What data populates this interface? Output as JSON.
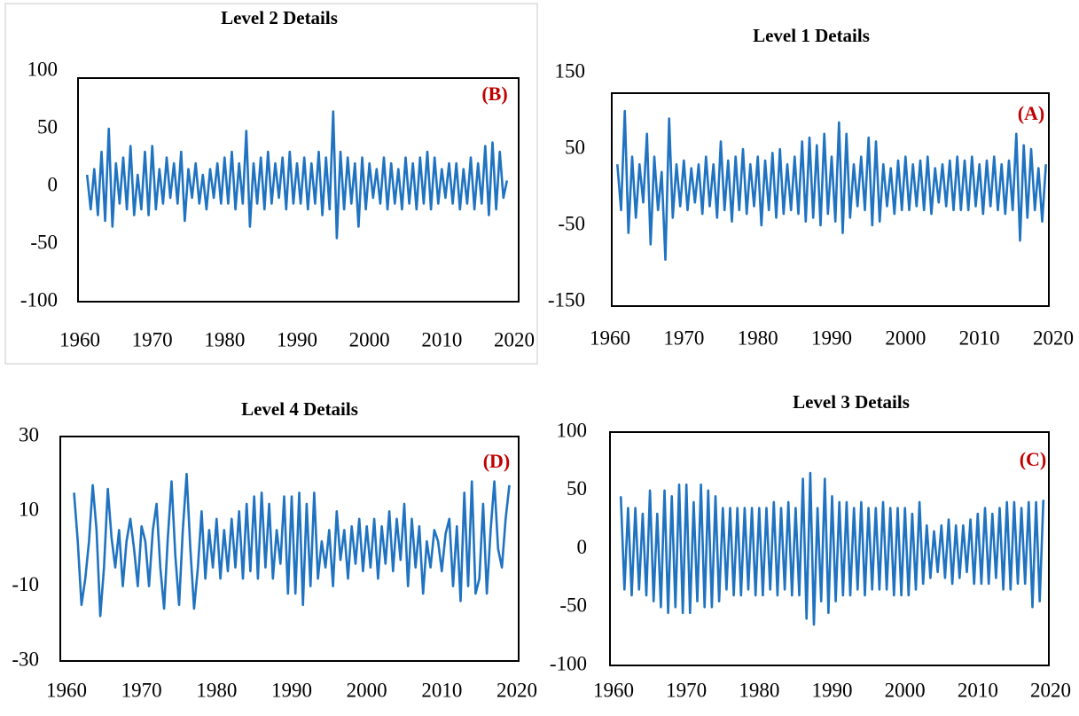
{
  "chart_data": [
    {
      "type": "line",
      "title": "Level 2 Details",
      "annotation": "(B)",
      "x": [
        1961,
        1961.5,
        1962,
        1962.5,
        1963,
        1963.5,
        1964,
        1964.5,
        1965,
        1965.5,
        1966,
        1966.5,
        1967,
        1967.5,
        1968,
        1968.5,
        1969,
        1969.5,
        1970,
        1970.5,
        1971,
        1971.5,
        1972,
        1972.5,
        1973,
        1973.5,
        1974,
        1974.5,
        1975,
        1975.5,
        1976,
        1976.5,
        1977,
        1977.5,
        1978,
        1978.5,
        1979,
        1979.5,
        1980,
        1980.5,
        1981,
        1981.5,
        1982,
        1982.5,
        1983,
        1983.5,
        1984,
        1984.5,
        1985,
        1985.5,
        1986,
        1986.5,
        1987,
        1987.5,
        1988,
        1988.5,
        1989,
        1989.5,
        1990,
        1990.5,
        1991,
        1991.5,
        1992,
        1992.5,
        1993,
        1993.5,
        1994,
        1994.5,
        1995,
        1995.5,
        1996,
        1996.5,
        1997,
        1997.5,
        1998,
        1998.5,
        1999,
        1999.5,
        2000,
        2000.5,
        2001,
        2001.5,
        2002,
        2002.5,
        2003,
        2003.5,
        2004,
        2004.5,
        2005,
        2005.5,
        2006,
        2006.5,
        2007,
        2007.5,
        2008,
        2008.5,
        2009,
        2009.5,
        2010,
        2010.5,
        2011,
        2011.5,
        2012,
        2012.5,
        2013,
        2013.5,
        2014,
        2014.5,
        2015,
        2015.5,
        2016,
        2016.5,
        2017,
        2017.5,
        2018,
        2018.5,
        2019
      ],
      "series": [
        {
          "color": "#1f73c1",
          "values": [
            10,
            -20,
            15,
            -25,
            30,
            -30,
            50,
            -35,
            20,
            -15,
            25,
            -20,
            35,
            -25,
            10,
            -20,
            30,
            -25,
            35,
            -20,
            15,
            -15,
            25,
            -10,
            20,
            -15,
            30,
            -30,
            15,
            -10,
            20,
            -15,
            10,
            -20,
            15,
            -10,
            20,
            -15,
            25,
            -15,
            30,
            -20,
            20,
            -15,
            48,
            -35,
            20,
            -15,
            25,
            -20,
            30,
            -15,
            20,
            -10,
            25,
            -20,
            30,
            -15,
            20,
            -15,
            25,
            -20,
            20,
            -15,
            30,
            -25,
            25,
            -20,
            65,
            -45,
            30,
            -20,
            25,
            -15,
            20,
            -35,
            25,
            -20,
            20,
            -10,
            15,
            -15,
            25,
            -20,
            20,
            -15,
            15,
            -20,
            25,
            -15,
            20,
            -20,
            25,
            -15,
            30,
            -20,
            25,
            -15,
            15,
            -10,
            20,
            -15,
            20,
            -20,
            15,
            -15,
            25,
            -20,
            20,
            -15,
            35,
            -25,
            38,
            -20,
            30,
            -10,
            5
          ]
        }
      ],
      "xlim": [
        1960,
        2020
      ],
      "xticks": [
        1960,
        1970,
        1980,
        1990,
        2000,
        2010,
        2020
      ],
      "ylim": [
        -100,
        100
      ],
      "yticks": [
        -100,
        -50,
        0,
        50,
        100
      ]
    },
    {
      "type": "line",
      "title": "Level 1 Details",
      "annotation": "(A)",
      "x": [
        1961,
        1961.5,
        1962,
        1962.5,
        1963,
        1963.5,
        1964,
        1964.5,
        1965,
        1965.5,
        1966,
        1966.5,
        1967,
        1967.5,
        1968,
        1968.5,
        1969,
        1969.5,
        1970,
        1970.5,
        1971,
        1971.5,
        1972,
        1972.5,
        1973,
        1973.5,
        1974,
        1974.5,
        1975,
        1975.5,
        1976,
        1976.5,
        1977,
        1977.5,
        1978,
        1978.5,
        1979,
        1979.5,
        1980,
        1980.5,
        1981,
        1981.5,
        1982,
        1982.5,
        1983,
        1983.5,
        1984,
        1984.5,
        1985,
        1985.5,
        1986,
        1986.5,
        1987,
        1987.5,
        1988,
        1988.5,
        1989,
        1989.5,
        1990,
        1990.5,
        1991,
        1991.5,
        1992,
        1992.5,
        1993,
        1993.5,
        1994,
        1994.5,
        1995,
        1995.5,
        1996,
        1996.5,
        1997,
        1997.5,
        1998,
        1998.5,
        1999,
        1999.5,
        2000,
        2000.5,
        2001,
        2001.5,
        2002,
        2002.5,
        2003,
        2003.5,
        2004,
        2004.5,
        2005,
        2005.5,
        2006,
        2006.5,
        2007,
        2007.5,
        2008,
        2008.5,
        2009,
        2009.5,
        2010,
        2010.5,
        2011,
        2011.5,
        2012,
        2012.5,
        2013,
        2013.5,
        2014,
        2014.5,
        2015,
        2015.5,
        2016,
        2016.5,
        2017,
        2017.5,
        2018,
        2018.5,
        2019
      ],
      "series": [
        {
          "color": "#1f73c1",
          "values": [
            30,
            -30,
            100,
            -60,
            40,
            -40,
            30,
            -20,
            70,
            -75,
            40,
            -30,
            20,
            -95,
            90,
            -40,
            30,
            -25,
            35,
            -30,
            25,
            -20,
            30,
            -35,
            40,
            -25,
            30,
            -40,
            60,
            -30,
            35,
            -45,
            40,
            -30,
            50,
            -35,
            30,
            -25,
            40,
            -50,
            35,
            -30,
            45,
            -40,
            50,
            -35,
            30,
            -30,
            40,
            -35,
            60,
            -45,
            65,
            -40,
            55,
            -50,
            70,
            -35,
            40,
            -45,
            85,
            -60,
            70,
            -40,
            30,
            -25,
            40,
            -30,
            65,
            -50,
            60,
            -45,
            30,
            -25,
            25,
            -35,
            35,
            -30,
            40,
            -30,
            30,
            -25,
            35,
            -30,
            40,
            -35,
            25,
            -20,
            30,
            -25,
            35,
            -30,
            40,
            -30,
            35,
            -30,
            40,
            -25,
            30,
            -35,
            35,
            -25,
            40,
            -30,
            30,
            -35,
            35,
            -30,
            70,
            -70,
            55,
            -40,
            50,
            -30,
            25,
            -45,
            30
          ]
        }
      ],
      "xlim": [
        1960,
        2020
      ],
      "xticks": [
        1960,
        1970,
        1980,
        1990,
        2000,
        2010,
        2020
      ],
      "ylim": [
        -150,
        150
      ],
      "yticks": [
        -150,
        -50,
        50,
        150
      ]
    },
    {
      "type": "line",
      "title": "Level 4 Details",
      "annotation": "(D)",
      "x": [
        1961,
        1961.5,
        1962,
        1962.5,
        1963,
        1963.5,
        1964,
        1964.5,
        1965,
        1965.5,
        1966,
        1966.5,
        1967,
        1967.5,
        1968,
        1968.5,
        1969,
        1969.5,
        1970,
        1970.5,
        1971,
        1971.5,
        1972,
        1972.5,
        1973,
        1973.5,
        1974,
        1974.5,
        1975,
        1975.5,
        1976,
        1976.5,
        1977,
        1977.5,
        1978,
        1978.5,
        1979,
        1979.5,
        1980,
        1980.5,
        1981,
        1981.5,
        1982,
        1982.5,
        1983,
        1983.5,
        1984,
        1984.5,
        1985,
        1985.5,
        1986,
        1986.5,
        1987,
        1987.5,
        1988,
        1988.5,
        1989,
        1989.5,
        1990,
        1990.5,
        1991,
        1991.5,
        1992,
        1992.5,
        1993,
        1993.5,
        1994,
        1994.5,
        1995,
        1995.5,
        1996,
        1996.5,
        1997,
        1997.5,
        1998,
        1998.5,
        1999,
        1999.5,
        2000,
        2000.5,
        2001,
        2001.5,
        2002,
        2002.5,
        2003,
        2003.5,
        2004,
        2004.5,
        2005,
        2005.5,
        2006,
        2006.5,
        2007,
        2007.5,
        2008,
        2008.5,
        2009,
        2009.5,
        2010,
        2010.5,
        2011,
        2011.5,
        2012,
        2012.5,
        2013,
        2013.5,
        2014,
        2014.5,
        2015,
        2015.5,
        2016,
        2016.5,
        2017,
        2017.5,
        2018,
        2018.5,
        2019
      ],
      "series": [
        {
          "color": "#1f73c1",
          "values": [
            15,
            2,
            -15,
            -8,
            2,
            17,
            5,
            -18,
            -5,
            16,
            3,
            -5,
            5,
            -10,
            2,
            8,
            0,
            -10,
            6,
            2,
            -10,
            5,
            12,
            -5,
            -16,
            3,
            18,
            -2,
            -15,
            5,
            20,
            0,
            -16,
            -5,
            10,
            -8,
            5,
            -5,
            8,
            -8,
            5,
            -6,
            8,
            -5,
            10,
            -8,
            12,
            -6,
            14,
            -8,
            15,
            -5,
            12,
            -8,
            5,
            -4,
            14,
            -12,
            14,
            -12,
            15,
            -15,
            12,
            -10,
            15,
            -8,
            2,
            -5,
            5,
            -10,
            10,
            -3,
            5,
            -8,
            6,
            -4,
            8,
            -6,
            6,
            -5,
            8,
            -8,
            6,
            -4,
            10,
            -6,
            8,
            -3,
            12,
            -10,
            8,
            -5,
            6,
            -12,
            2,
            -5,
            5,
            2,
            -6,
            4,
            8,
            -10,
            6,
            -14,
            15,
            -10,
            18,
            -12,
            -8,
            12,
            -12,
            5,
            18,
            0,
            -5,
            8,
            17
          ]
        }
      ],
      "xlim": [
        1960,
        2020
      ],
      "xticks": [
        1960,
        1970,
        1980,
        1990,
        2000,
        2010,
        2020
      ],
      "ylim": [
        -30,
        30
      ],
      "yticks": [
        -30,
        -10,
        10,
        30
      ]
    },
    {
      "type": "line",
      "title": "Level 3 Details",
      "annotation": "(C)",
      "x": [
        1961,
        1961.5,
        1962,
        1962.5,
        1963,
        1963.5,
        1964,
        1964.5,
        1965,
        1965.5,
        1966,
        1966.5,
        1967,
        1967.5,
        1968,
        1968.5,
        1969,
        1969.5,
        1970,
        1970.5,
        1971,
        1971.5,
        1972,
        1972.5,
        1973,
        1973.5,
        1974,
        1974.5,
        1975,
        1975.5,
        1976,
        1976.5,
        1977,
        1977.5,
        1978,
        1978.5,
        1979,
        1979.5,
        1980,
        1980.5,
        1981,
        1981.5,
        1982,
        1982.5,
        1983,
        1983.5,
        1984,
        1984.5,
        1985,
        1985.5,
        1986,
        1986.5,
        1987,
        1987.5,
        1988,
        1988.5,
        1989,
        1989.5,
        1990,
        1990.5,
        1991,
        1991.5,
        1992,
        1992.5,
        1993,
        1993.5,
        1994,
        1994.5,
        1995,
        1995.5,
        1996,
        1996.5,
        1997,
        1997.5,
        1998,
        1998.5,
        1999,
        1999.5,
        2000,
        2000.5,
        2001,
        2001.5,
        2002,
        2002.5,
        2003,
        2003.5,
        2004,
        2004.5,
        2005,
        2005.5,
        2006,
        2006.5,
        2007,
        2007.5,
        2008,
        2008.5,
        2009,
        2009.5,
        2010,
        2010.5,
        2011,
        2011.5,
        2012,
        2012.5,
        2013,
        2013.5,
        2014,
        2014.5,
        2015,
        2015.5,
        2016,
        2016.5,
        2017,
        2017.5,
        2018,
        2018.5,
        2019
      ],
      "series": [
        {
          "color": "#1f73c1",
          "values": [
            45,
            -35,
            35,
            -40,
            35,
            -35,
            30,
            -40,
            50,
            -45,
            30,
            -50,
            50,
            -55,
            45,
            -50,
            55,
            -55,
            55,
            -55,
            40,
            -45,
            55,
            -50,
            50,
            -50,
            45,
            -45,
            35,
            -35,
            35,
            -40,
            35,
            -40,
            35,
            -35,
            35,
            -40,
            35,
            -40,
            35,
            -35,
            40,
            -40,
            35,
            -35,
            40,
            -40,
            35,
            -40,
            60,
            -60,
            65,
            -65,
            35,
            -45,
            60,
            -55,
            45,
            -45,
            40,
            -40,
            40,
            -40,
            35,
            -35,
            40,
            -40,
            35,
            -35,
            35,
            -35,
            40,
            -35,
            35,
            -40,
            35,
            -40,
            35,
            -40,
            30,
            -35,
            40,
            -30,
            20,
            -25,
            15,
            -20,
            20,
            -25,
            25,
            -30,
            20,
            -25,
            20,
            -20,
            25,
            -30,
            30,
            -30,
            35,
            -30,
            30,
            -25,
            35,
            -35,
            40,
            -35,
            40,
            -30,
            35,
            -30,
            40,
            -50,
            40,
            -45,
            42
          ]
        }
      ],
      "xlim": [
        1960,
        2020
      ],
      "xticks": [
        1960,
        1970,
        1980,
        1990,
        2000,
        2010,
        2020
      ],
      "ylim": [
        -100,
        100
      ],
      "yticks": [
        -100,
        -50,
        0,
        50,
        100
      ]
    }
  ]
}
